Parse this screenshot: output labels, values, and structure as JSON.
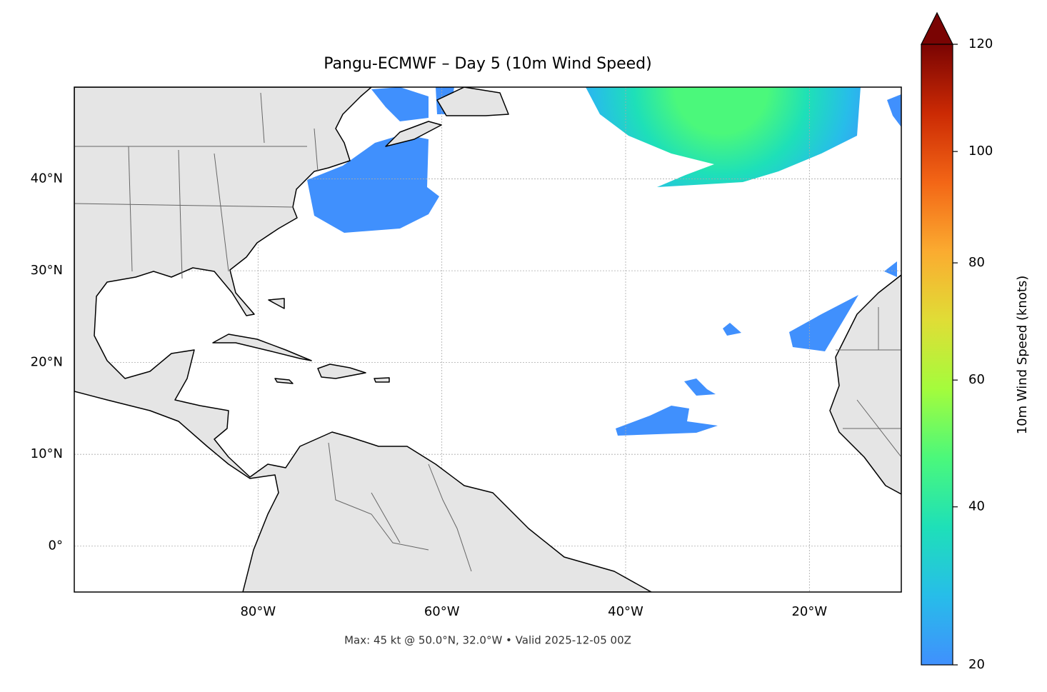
{
  "chart_data": {
    "type": "map",
    "title": "Pangu-ECMWF – Day 5 (10m Wind Speed)",
    "footnote": "Max: 45 kt @ 50.0°N, 32.0°W • Valid 2025-12-05 00Z",
    "xlim": [
      -100,
      -10
    ],
    "ylim": [
      -5,
      50
    ],
    "xticks": [
      {
        "value": -80,
        "label": "80°W"
      },
      {
        "value": -60,
        "label": "60°W"
      },
      {
        "value": -40,
        "label": "40°W"
      },
      {
        "value": -20,
        "label": "20°W"
      }
    ],
    "yticks": [
      {
        "value": 0,
        "label": "0°"
      },
      {
        "value": 10,
        "label": "10°N"
      },
      {
        "value": 20,
        "label": "20°N"
      },
      {
        "value": 30,
        "label": "30°N"
      },
      {
        "value": 40,
        "label": "40°N"
      }
    ],
    "grid": true,
    "colorbar": {
      "label": "10m Wind Speed (knots)",
      "lim": [
        20,
        120
      ],
      "ticks": [
        20,
        40,
        60,
        80,
        100,
        120
      ],
      "gamma": 0.85,
      "extend": "max",
      "colors": [
        "#4090fd",
        "#27bde9",
        "#1ee0b8",
        "#4bf87b",
        "#a4fc3c",
        "#e0dd36",
        "#fbab30",
        "#f36616",
        "#cb2a04",
        "#7a0403"
      ]
    }
  }
}
